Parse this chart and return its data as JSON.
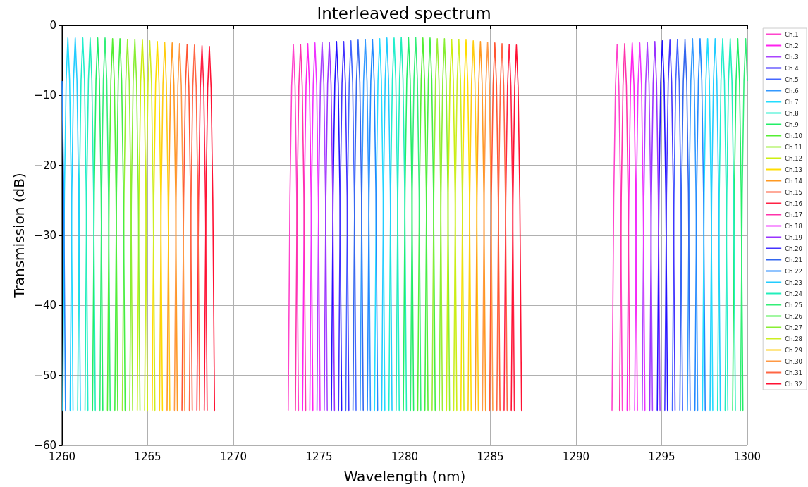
{
  "chart_data": {
    "type": "line",
    "title": "Interleaved spectrum",
    "xlabel": "Wavelength (nm)",
    "ylabel": "Transmission (dB)",
    "xlim": [
      1260,
      1300
    ],
    "xticks": [
      1260,
      1265,
      1270,
      1275,
      1280,
      1285,
      1290,
      1295,
      1300
    ],
    "ylim": [
      -60,
      0
    ],
    "yticks": [
      -60,
      -50,
      -40,
      -30,
      -20,
      -10,
      0
    ],
    "grid": true,
    "legend": "top right",
    "marker": "none",
    "line_style": "solid",
    "series": [
      {
        "name": "Ch.1",
        "color": "#ff44cc",
        "x": [
          1273.2,
          1273.3,
          1273.4,
          1273.5,
          1273.6,
          1273.7,
          1273.8,
          null,
          1292.1,
          1292.2,
          1292.3,
          1292.4,
          1292.5,
          1292.6,
          1292.7
        ],
        "values": [
          -55,
          -24.7,
          -8.7,
          -2.7,
          -8.7,
          -24.7,
          -55,
          null,
          -55,
          -24.7,
          -8.7,
          -2.7,
          -8.7,
          -24.7,
          -55
        ]
      },
      {
        "name": "Ch.2",
        "color": "#ff22ee",
        "x": [
          1274.04,
          1274.14,
          1274.24,
          1274.34,
          1274.44,
          1274.54,
          1274.64,
          null,
          1292.98,
          1293.08,
          1293.18,
          1293.28,
          1293.38,
          1293.48,
          1293.58
        ],
        "values": [
          -55,
          -24.6,
          -8.6,
          -2.6,
          -8.6,
          -24.6,
          -55,
          null,
          -55,
          -24.5,
          -8.5,
          -2.5,
          -8.5,
          -24.5,
          -55
        ]
      },
      {
        "name": "Ch.3",
        "color": "#aa44ff",
        "x": [
          1274.88,
          1274.98,
          1275.08,
          1275.18,
          1275.28,
          1275.38,
          1275.48,
          null,
          1293.86,
          1293.96,
          1294.06,
          1294.16,
          1294.26,
          1294.36,
          1294.46
        ],
        "values": [
          -55,
          -24.4,
          -8.4,
          -2.4,
          -8.4,
          -24.4,
          -55,
          null,
          -55,
          -24.4,
          -8.4,
          -2.4,
          -8.4,
          -24.4,
          -55
        ]
      },
      {
        "name": "Ch.4",
        "color": "#2211ff",
        "x": [
          1275.72,
          1275.82,
          1275.92,
          1276.02,
          1276.12,
          1276.22,
          1276.32,
          null,
          1294.74,
          1294.84,
          1294.94,
          1295.04,
          1295.14,
          1295.24,
          1295.34
        ],
        "values": [
          -55,
          -24.3,
          -8.3,
          -2.3,
          -8.3,
          -24.3,
          -55,
          null,
          -55,
          -24.2,
          -8.2,
          -2.2,
          -8.2,
          -24.2,
          -55
        ]
      },
      {
        "name": "Ch.5",
        "color": "#4466ff",
        "x": [
          1276.56,
          1276.66,
          1276.76,
          1276.86,
          1276.96,
          1277.06,
          1277.16,
          null,
          1295.62,
          1295.72,
          1295.82,
          1295.92,
          1296.02,
          1296.12,
          1296.22
        ],
        "values": [
          -55,
          -24.2,
          -8.2,
          -2.2,
          -8.2,
          -24.2,
          -55,
          null,
          -55,
          -24,
          -8,
          -2,
          -8,
          -24,
          -55
        ]
      },
      {
        "name": "Ch.6",
        "color": "#3399ff",
        "x": [
          1277.4,
          1277.5,
          1277.6,
          1277.7,
          1277.8,
          1277.9,
          1278,
          null,
          1296.5,
          1296.6,
          1296.7,
          1296.8,
          1296.9,
          1297,
          1297.1
        ],
        "values": [
          -55,
          -24,
          -8,
          -2,
          -8,
          -24,
          -55,
          null,
          -55,
          -23.9,
          -7.9,
          -1.9,
          -7.9,
          -23.9,
          -55
        ]
      },
      {
        "name": "Ch.7",
        "color": "#22ddff",
        "x": [
          1260.04,
          1260.14,
          1260.24,
          1260.34,
          1260.44,
          1260.54,
          1260.64,
          null,
          1278.24,
          1278.34,
          1278.44,
          1278.54,
          1278.64,
          1278.74,
          1278.84,
          null,
          1297.38,
          1297.48,
          1297.58,
          1297.68,
          1297.78,
          1297.88,
          1297.98
        ],
        "values": [
          -55,
          -23.8,
          -7.8,
          -1.8,
          -7.8,
          -23.8,
          -55,
          null,
          -55,
          -23.9,
          -7.9,
          -1.9,
          -7.9,
          -23.9,
          -55,
          null,
          -55,
          -23.9,
          -7.9,
          -1.9,
          -7.9,
          -23.9,
          -55
        ]
      },
      {
        "name": "Ch.8",
        "color": "#22eecc",
        "x": [
          1260.91,
          1261.01,
          1261.11,
          1261.21,
          1261.31,
          1261.41,
          1261.51,
          null,
          1279.08,
          1279.18,
          1279.28,
          1279.38,
          1279.48,
          1279.58,
          1279.68,
          null,
          1298.26,
          1298.36,
          1298.46,
          1298.56,
          1298.66,
          1298.76,
          1298.86
        ],
        "values": [
          -55,
          -23.8,
          -7.8,
          -1.8,
          -7.8,
          -23.8,
          -55,
          null,
          -55,
          -23.8,
          -7.8,
          -1.8,
          -7.8,
          -23.8,
          -55,
          null,
          -55,
          -23.9,
          -7.9,
          -1.9,
          -7.9,
          -23.9,
          -55
        ]
      },
      {
        "name": "Ch.9",
        "color": "#22ee66",
        "x": [
          1261.78,
          1261.88,
          1261.98,
          1262.08,
          1262.18,
          1262.28,
          1262.38,
          null,
          1279.92,
          1280.02,
          1280.12,
          1280.22,
          1280.32,
          1280.42,
          1280.52,
          null,
          1299.14,
          1299.24,
          1299.34,
          1299.44,
          1299.54,
          1299.64,
          1299.74
        ],
        "values": [
          -55,
          -23.8,
          -7.8,
          -1.8,
          -7.8,
          -23.8,
          -55,
          null,
          -55,
          -23.7,
          -7.7,
          -1.7,
          -7.7,
          -23.7,
          -55,
          null,
          -55,
          -23.9,
          -7.9,
          -1.9,
          -7.9,
          -23.9,
          -55
        ]
      },
      {
        "name": "Ch.10",
        "color": "#55ee33",
        "x": [
          1262.65,
          1262.75,
          1262.85,
          1262.95,
          1263.05,
          1263.15,
          1263.25,
          null,
          1280.76,
          1280.86,
          1280.96,
          1281.06,
          1281.16,
          1281.26,
          1281.36
        ],
        "values": [
          -55,
          -23.9,
          -7.9,
          -1.9,
          -7.9,
          -23.9,
          -55,
          null,
          -55,
          -23.8,
          -7.8,
          -1.8,
          -7.8,
          -23.8,
          -55
        ]
      },
      {
        "name": "Ch.11",
        "color": "#99ee33",
        "x": [
          1263.52,
          1263.62,
          1263.72,
          1263.82,
          1263.92,
          1264.02,
          1264.12,
          null,
          1281.6,
          1281.7,
          1281.8,
          1281.9,
          1282,
          1282.1,
          1282.2
        ],
        "values": [
          -55,
          -24,
          -8,
          -2,
          -8,
          -24,
          -55,
          null,
          -55,
          -23.9,
          -7.9,
          -1.9,
          -7.9,
          -23.9,
          -55
        ]
      },
      {
        "name": "Ch.12",
        "color": "#ccee11",
        "x": [
          1264.39,
          1264.49,
          1264.59,
          1264.69,
          1264.79,
          1264.89,
          1264.99,
          null,
          1282.44,
          1282.54,
          1282.64,
          1282.74,
          1282.84,
          1282.94,
          1283.04
        ],
        "values": [
          -55,
          -24.1,
          -8.1,
          -2.1,
          -8.1,
          -24.1,
          -55,
          null,
          -55,
          -24,
          -8,
          -2,
          -8,
          -24,
          -55
        ]
      },
      {
        "name": "Ch.13",
        "color": "#ffdd00",
        "x": [
          1265.26,
          1265.36,
          1265.46,
          1265.56,
          1265.66,
          1265.76,
          1265.86,
          null,
          1283.28,
          1283.38,
          1283.48,
          1283.58,
          1283.68,
          1283.78,
          1283.88
        ],
        "values": [
          -55,
          -24.3,
          -8.3,
          -2.3,
          -8.3,
          -24.3,
          -55,
          null,
          -55,
          -24.1,
          -8.1,
          -2.1,
          -8.1,
          -24.1,
          -55
        ]
      },
      {
        "name": "Ch.14",
        "color": "#ff9922",
        "x": [
          1266.13,
          1266.23,
          1266.33,
          1266.43,
          1266.53,
          1266.63,
          1266.73,
          null,
          1284.12,
          1284.22,
          1284.32,
          1284.42,
          1284.52,
          1284.62,
          1284.72
        ],
        "values": [
          -55,
          -24.5,
          -8.5,
          -2.5,
          -8.5,
          -24.5,
          -55,
          null,
          -55,
          -24.3,
          -8.3,
          -2.3,
          -8.3,
          -24.3,
          -55
        ]
      },
      {
        "name": "Ch.15",
        "color": "#ff5533",
        "x": [
          1267,
          1267.1,
          1267.2,
          1267.3,
          1267.4,
          1267.5,
          1267.6,
          null,
          1284.96,
          1285.06,
          1285.16,
          1285.26,
          1285.36,
          1285.46,
          1285.56
        ],
        "values": [
          -55,
          -24.7,
          -8.7,
          -2.7,
          -8.7,
          -24.7,
          -55,
          null,
          -55,
          -24.5,
          -8.5,
          -2.5,
          -8.5,
          -24.5,
          -55
        ]
      },
      {
        "name": "Ch.16",
        "color": "#ff2244",
        "x": [
          1267.87,
          1267.97,
          1268.07,
          1268.17,
          1268.27,
          1268.37,
          1268.47,
          null,
          1285.8,
          1285.9,
          1286,
          1286.1,
          1286.2,
          1286.3,
          1286.4
        ],
        "values": [
          -55,
          -24.9,
          -8.9,
          -2.9,
          -8.9,
          -24.9,
          -55,
          null,
          -55,
          -24.7,
          -8.7,
          -2.7,
          -8.7,
          -24.7,
          -55
        ]
      },
      {
        "name": "Ch.17",
        "color": "#ff33aa",
        "x": [
          1273.62,
          1273.72,
          1273.82,
          1273.92,
          1274.02,
          1274.12,
          1274.22,
          null,
          1292.54,
          1292.64,
          1292.74,
          1292.84,
          1292.94,
          1293.04,
          1293.14
        ],
        "values": [
          -55,
          -24.7,
          -8.7,
          -2.7,
          -8.7,
          -24.7,
          -55,
          null,
          -55,
          -24.6,
          -8.6,
          -2.6,
          -8.6,
          -24.6,
          -55
        ]
      },
      {
        "name": "Ch.18",
        "color": "#ee33ff",
        "x": [
          1274.46,
          1274.56,
          1274.66,
          1274.76,
          1274.86,
          1274.96,
          1275.06,
          null,
          1293.42,
          1293.52,
          1293.62,
          1293.72,
          1293.82,
          1293.92,
          1294.02
        ],
        "values": [
          -55,
          -24.5,
          -8.5,
          -2.5,
          -8.5,
          -24.5,
          -55,
          null,
          -55,
          -24.5,
          -8.5,
          -2.5,
          -8.5,
          -24.5,
          -55
        ]
      },
      {
        "name": "Ch.19",
        "color": "#9933ff",
        "x": [
          1275.3,
          1275.4,
          1275.5,
          1275.6,
          1275.7,
          1275.8,
          1275.9,
          null,
          1294.3,
          1294.4,
          1294.5,
          1294.6,
          1294.7,
          1294.8,
          1294.9
        ],
        "values": [
          -55,
          -24.4,
          -8.4,
          -2.4,
          -8.4,
          -24.4,
          -55,
          null,
          -55,
          -24.3,
          -8.3,
          -2.3,
          -8.3,
          -24.3,
          -55
        ]
      },
      {
        "name": "Ch.20",
        "color": "#4433ff",
        "x": [
          1276.14,
          1276.24,
          1276.34,
          1276.44,
          1276.54,
          1276.64,
          1276.74,
          null,
          1295.18,
          1295.28,
          1295.38,
          1295.48,
          1295.58,
          1295.68,
          1295.78
        ],
        "values": [
          -55,
          -24.3,
          -8.3,
          -2.3,
          -8.3,
          -24.3,
          -55,
          null,
          -55,
          -24.1,
          -8.1,
          -2.1,
          -8.1,
          -24.1,
          -55
        ]
      },
      {
        "name": "Ch.21",
        "color": "#3366ee",
        "x": [
          1276.98,
          1277.08,
          1277.18,
          1277.28,
          1277.38,
          1277.48,
          1277.58,
          null,
          1296.06,
          1296.16,
          1296.26,
          1296.36,
          1296.46,
          1296.56,
          1296.66
        ],
        "values": [
          -55,
          -24.1,
          -8.1,
          -2.1,
          -8.1,
          -24.1,
          -55,
          null,
          -55,
          -24,
          -8,
          -2,
          -8,
          -24,
          -55
        ]
      },
      {
        "name": "Ch.22",
        "color": "#2288ff",
        "x": [
          1260,
          1260.1,
          1260.2,
          null,
          1277.82,
          1277.92,
          1278.02,
          1278.12,
          1278.22,
          1278.32,
          1278.42,
          null,
          1296.94,
          1297.04,
          1297.14,
          1297.24,
          1297.34,
          1297.44,
          1297.54
        ],
        "values": [
          -8,
          -24,
          -55,
          null,
          -55,
          -24,
          -8,
          -2,
          -8,
          -24,
          -55,
          null,
          -55,
          -23.9,
          -7.9,
          -1.9,
          -7.9,
          -23.9,
          -55
        ]
      },
      {
        "name": "Ch.23",
        "color": "#22ccff",
        "x": [
          1260.47,
          1260.57,
          1260.67,
          1260.77,
          1260.87,
          1260.97,
          1261.07,
          null,
          1278.66,
          1278.76,
          1278.86,
          1278.96,
          1279.06,
          1279.16,
          1279.26,
          null,
          1297.82,
          1297.92,
          1298.02,
          1298.12,
          1298.22,
          1298.32,
          1298.42
        ],
        "values": [
          -55,
          -23.8,
          -7.8,
          -1.8,
          -7.8,
          -23.8,
          -55,
          null,
          -55,
          -23.8,
          -7.8,
          -1.8,
          -7.8,
          -23.8,
          -55,
          null,
          -55,
          -23.9,
          -7.9,
          -1.9,
          -7.9,
          -23.9,
          -55
        ]
      },
      {
        "name": "Ch.24",
        "color": "#22eebb",
        "x": [
          1261.34,
          1261.44,
          1261.54,
          1261.64,
          1261.74,
          1261.84,
          1261.94,
          null,
          1279.5,
          1279.6,
          1279.7,
          1279.8,
          1279.9,
          1280,
          1280.1,
          null,
          1298.7,
          1298.8,
          1298.9,
          1299,
          1299.1,
          1299.2,
          1299.3
        ],
        "values": [
          -55,
          -23.8,
          -7.8,
          -1.8,
          -7.8,
          -23.8,
          -55,
          null,
          -55,
          -23.7,
          -7.7,
          -1.7,
          -7.7,
          -23.7,
          -55,
          null,
          -55,
          -23.9,
          -7.9,
          -1.9,
          -7.9,
          -23.9,
          -55
        ]
      },
      {
        "name": "Ch.25",
        "color": "#33ee77",
        "x": [
          1262.21,
          1262.31,
          1262.41,
          1262.51,
          1262.61,
          1262.71,
          1262.81,
          null,
          1280.34,
          1280.44,
          1280.54,
          1280.64,
          1280.74,
          1280.84,
          1280.94,
          null,
          1299.6,
          1299.7,
          1299.8,
          1299.9,
          1300
        ],
        "values": [
          -55,
          -23.8,
          -7.8,
          -1.8,
          -7.8,
          -23.8,
          -55,
          null,
          -55,
          -23.7,
          -7.7,
          -1.7,
          -7.7,
          -23.7,
          -55,
          null,
          -55,
          -23.9,
          -7.9,
          -1.9,
          -7.9
        ]
      },
      {
        "name": "Ch.26",
        "color": "#44ee44",
        "x": [
          1263.08,
          1263.18,
          1263.28,
          1263.38,
          1263.48,
          1263.58,
          1263.68,
          null,
          1281.18,
          1281.28,
          1281.38,
          1281.48,
          1281.58,
          1281.68,
          1281.78
        ],
        "values": [
          -55,
          -23.9,
          -7.9,
          -1.9,
          -7.9,
          -23.9,
          -55,
          null,
          -55,
          -23.8,
          -7.8,
          -1.8,
          -7.8,
          -23.8,
          -55
        ]
      },
      {
        "name": "Ch.27",
        "color": "#88ee33",
        "x": [
          1263.95,
          1264.05,
          1264.15,
          1264.25,
          1264.35,
          1264.45,
          1264.55,
          null,
          1282.02,
          1282.12,
          1282.22,
          1282.32,
          1282.42,
          1282.52,
          1282.62
        ],
        "values": [
          -55,
          -24,
          -8,
          -2,
          -8,
          -24,
          -55,
          null,
          -55,
          -23.9,
          -7.9,
          -1.9,
          -7.9,
          -23.9,
          -55
        ]
      },
      {
        "name": "Ch.28",
        "color": "#ccee22",
        "x": [
          1264.82,
          1264.92,
          1265.02,
          1265.12,
          1265.22,
          1265.32,
          1265.42,
          null,
          1282.86,
          1282.96,
          1283.06,
          1283.16,
          1283.26,
          1283.36,
          1283.46
        ],
        "values": [
          -55,
          -24.2,
          -8.2,
          -2.2,
          -8.2,
          -24.2,
          -55,
          null,
          -55,
          -24,
          -8,
          -2,
          -8,
          -24,
          -55
        ]
      },
      {
        "name": "Ch.29",
        "color": "#ffcc11",
        "x": [
          1265.69,
          1265.79,
          1265.89,
          1265.99,
          1266.09,
          1266.19,
          1266.29,
          null,
          1283.7,
          1283.8,
          1283.9,
          1284,
          1284.1,
          1284.2,
          1284.3
        ],
        "values": [
          -55,
          -24.4,
          -8.4,
          -2.4,
          -8.4,
          -24.4,
          -55,
          null,
          -55,
          -24.2,
          -8.2,
          -2.2,
          -8.2,
          -24.2,
          -55
        ]
      },
      {
        "name": "Ch.30",
        "color": "#ff9944",
        "x": [
          1266.56,
          1266.66,
          1266.76,
          1266.86,
          1266.96,
          1267.06,
          1267.16,
          null,
          1284.54,
          1284.64,
          1284.74,
          1284.84,
          1284.94,
          1285.04,
          1285.14
        ],
        "values": [
          -55,
          -24.6,
          -8.6,
          -2.6,
          -8.6,
          -24.6,
          -55,
          null,
          -55,
          -24.4,
          -8.4,
          -2.4,
          -8.4,
          -24.4,
          -55
        ]
      },
      {
        "name": "Ch.31",
        "color": "#ff6644",
        "x": [
          1267.43,
          1267.53,
          1267.63,
          1267.73,
          1267.83,
          1267.93,
          1268.03,
          null,
          1285.38,
          1285.48,
          1285.58,
          1285.68,
          1285.78,
          1285.88,
          1285.98
        ],
        "values": [
          -55,
          -24.8,
          -8.8,
          -2.8,
          -8.8,
          -24.8,
          -55,
          null,
          -55,
          -24.6,
          -8.6,
          -2.6,
          -8.6,
          -24.6,
          -55
        ]
      },
      {
        "name": "Ch.32",
        "color": "#ff1133",
        "x": [
          1268.3,
          1268.4,
          1268.5,
          1268.6,
          1268.7,
          1268.8,
          1268.9,
          null,
          1286.22,
          1286.32,
          1286.42,
          1286.52,
          1286.62,
          1286.72,
          1286.82
        ],
        "values": [
          -55,
          -25,
          -9,
          -3,
          -9,
          -25,
          -55,
          null,
          -55,
          -24.8,
          -8.8,
          -2.8,
          -8.8,
          -24.8,
          -55
        ]
      }
    ]
  }
}
